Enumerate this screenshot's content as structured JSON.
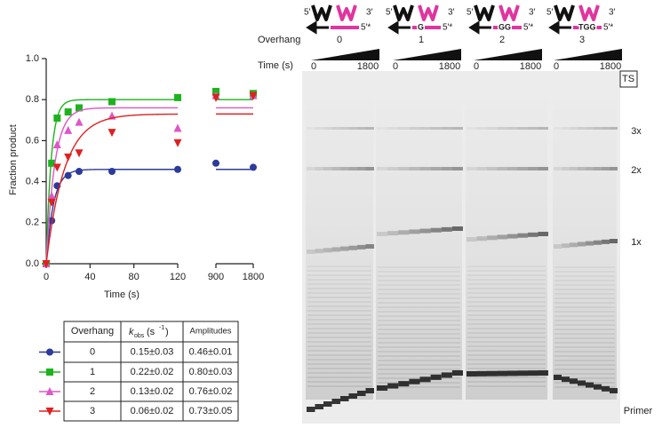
{
  "chart_data": {
    "type": "scatter",
    "y_label": "Fraction product",
    "x_label": "Time (s)",
    "ylim": [
      0,
      1.0
    ],
    "yticks": [
      {
        "value": 0,
        "label": "0.0"
      },
      {
        "value": 0.2,
        "label": "0.2"
      },
      {
        "value": 0.4,
        "label": "0.4"
      },
      {
        "value": 0.6,
        "label": "0.6"
      },
      {
        "value": 0.8,
        "label": "0.8"
      },
      {
        "value": 1.0,
        "label": "1.0"
      }
    ],
    "xlim": [
      0,
      120
    ],
    "xticks": [
      0,
      40,
      80,
      120
    ],
    "x2lim": [
      900,
      1800
    ],
    "x2ticks": [
      900,
      1800
    ],
    "series": [
      {
        "name": "0",
        "color": "#2b3a9b",
        "marker": "circle",
        "x": [
          0,
          5,
          10,
          20,
          30,
          60,
          120,
          900,
          1800
        ],
        "values": [
          0,
          0.21,
          0.38,
          0.43,
          0.45,
          0.45,
          0.46,
          0.49,
          0.47
        ],
        "fit": {
          "k": 0.15,
          "amplitude": 0.46
        }
      },
      {
        "name": "1",
        "color": "#1db31d",
        "marker": "square",
        "x": [
          0,
          5,
          10,
          20,
          30,
          60,
          120,
          900,
          1800
        ],
        "values": [
          0,
          0.49,
          0.71,
          0.74,
          0.76,
          0.79,
          0.81,
          0.84,
          0.83
        ],
        "fit": {
          "k": 0.22,
          "amplitude": 0.8
        }
      },
      {
        "name": "2",
        "color": "#e055c8",
        "marker": "triangle-up",
        "x": [
          0,
          5,
          10,
          20,
          30,
          60,
          120,
          900,
          1800
        ],
        "values": [
          0,
          0.33,
          0.58,
          0.65,
          0.69,
          0.72,
          0.66,
          0.82,
          0.82
        ],
        "fit": {
          "k": 0.13,
          "amplitude": 0.76
        }
      },
      {
        "name": "3",
        "color": "#e02020",
        "marker": "triangle-down",
        "x": [
          0,
          5,
          10,
          20,
          30,
          60,
          120,
          900,
          1800
        ],
        "values": [
          0,
          0.3,
          0.47,
          0.52,
          0.54,
          0.64,
          0.59,
          0.81,
          0.82
        ],
        "fit": {
          "k": 0.06,
          "amplitude": 0.73
        }
      }
    ]
  },
  "table": {
    "header": {
      "overhang": "Overhang",
      "k": "k",
      "k_sub": "obs",
      "k_unit_open": "(s",
      "k_unit_exp": "-1",
      "k_unit_close": ")",
      "amplitudes": "Amplitudes"
    },
    "rows": [
      [
        "0.15±0.03",
        "0.46±0.01"
      ],
      [
        "0.22±0.02",
        "0.80±0.03"
      ],
      [
        "0.13±0.02",
        "0.76±0.02"
      ],
      [
        "0.06±0.02",
        "0.73±0.05"
      ]
    ]
  },
  "gel": {
    "five_prime": "5′",
    "three_prime": "3′",
    "five_prime_star": "5′*",
    "overhang_label": "Overhang",
    "time_label": "Time (s)",
    "constructs": [
      {
        "overhang": "0",
        "seq": null
      },
      {
        "overhang": "1",
        "seq": "G"
      },
      {
        "overhang": "2",
        "seq": "GG"
      },
      {
        "overhang": "3",
        "seq": "TGG"
      }
    ],
    "time_start": "0",
    "time_end": "1800",
    "band_labels": {
      "ts": "TS",
      "x3": "3x",
      "x2": "2x",
      "x1": "1x",
      "primer": "Primer"
    }
  }
}
